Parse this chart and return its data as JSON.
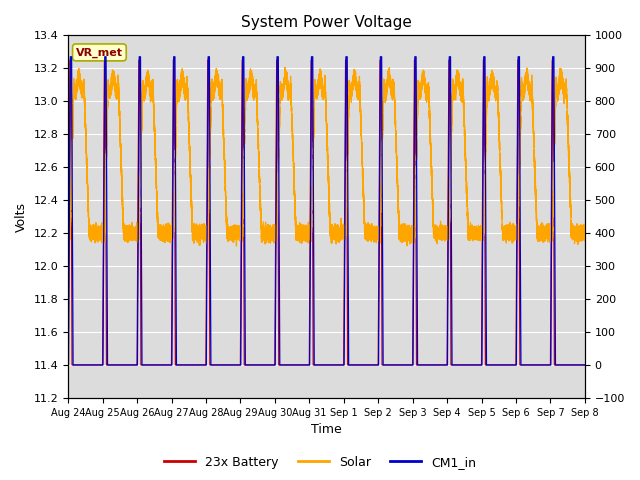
{
  "title": "System Power Voltage",
  "xlabel": "Time",
  "ylabel": "Volts",
  "ylim_left": [
    11.2,
    13.4
  ],
  "ylim_right": [
    -100,
    1000
  ],
  "yticks_left": [
    11.2,
    11.4,
    11.6,
    11.8,
    12.0,
    12.2,
    12.4,
    12.6,
    12.8,
    13.0,
    13.2,
    13.4
  ],
  "yticks_right": [
    -100,
    0,
    100,
    200,
    300,
    400,
    500,
    600,
    700,
    800,
    900,
    1000
  ],
  "num_days": 15,
  "xtick_labels": [
    "Aug 24",
    "Aug 25",
    "Aug 26",
    "Aug 27",
    "Aug 28",
    "Aug 29",
    "Aug 30",
    "Aug 31",
    "Sep 1",
    "Sep 2",
    "Sep 3",
    "Sep 4",
    "Sep 5",
    "Sep 6",
    "Sep 7",
    "Sep 8"
  ],
  "annotation_text": "VR_met",
  "annotation_box_color": "#FFFFCC",
  "annotation_text_color": "#8B0000",
  "annotation_border_color": "#AAAA00",
  "color_battery": "#CC0000",
  "color_solar": "#FFA500",
  "color_cm1": "#0000CC",
  "legend_labels": [
    "23x Battery",
    "Solar",
    "CM1_in"
  ],
  "background_color": "#DCDCDC",
  "grid_color": "#FFFFFF",
  "battery_base": 11.4,
  "battery_peak": 13.25,
  "solar_base": 12.2,
  "solar_peak": 13.1,
  "cm1_base": 11.4,
  "cm1_peak": 13.27
}
